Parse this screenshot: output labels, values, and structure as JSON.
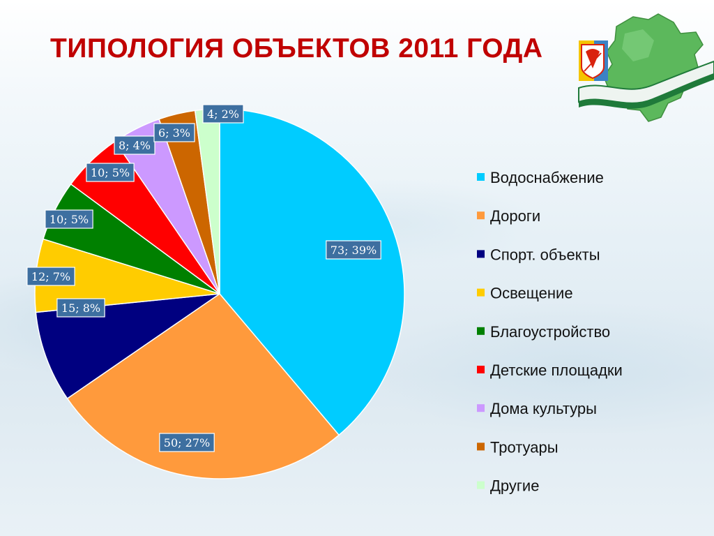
{
  "slide": {
    "title": "ТИПОЛОГИЯ ОБЪЕКТОВ 2011 ГОДА"
  },
  "logo": {
    "icon": "region-map-emblem-icon",
    "colors": {
      "map": "#5cb85c",
      "ribbon": "#1f7a3a",
      "flag_blue": "#3b82c4",
      "flag_yellow": "#f5c400",
      "flag_red": "#d9230f"
    }
  },
  "chart_data": {
    "type": "pie",
    "title": "",
    "legend_position": "right",
    "label_format": "value; percent",
    "slices": [
      {
        "name": "Водоснабжение",
        "value": 73,
        "percent": 39,
        "label": "73; 39%",
        "color": "#00ccff"
      },
      {
        "name": "Дороги",
        "value": 50,
        "percent": 27,
        "label": "50; 27%",
        "color": "#ff9a3c"
      },
      {
        "name": "Спорт. объекты",
        "value": 15,
        "percent": 8,
        "label": "15; 8%",
        "color": "#000080"
      },
      {
        "name": "Освещение",
        "value": 12,
        "percent": 7,
        "label": "12; 7%",
        "color": "#ffcc00"
      },
      {
        "name": "Благоустройство",
        "value": 10,
        "percent": 5,
        "label": "10; 5%",
        "color": "#008000"
      },
      {
        "name": "Детские площадки",
        "value": 10,
        "percent": 5,
        "label": "10; 5%",
        "color": "#ff0000"
      },
      {
        "name": "Дома культуры",
        "value": 8,
        "percent": 4,
        "label": "8; 4%",
        "color": "#cc99ff"
      },
      {
        "name": "Тротуары",
        "value": 6,
        "percent": 3,
        "label": "6; 3%",
        "color": "#cc6600"
      },
      {
        "name": "Другие",
        "value": 4,
        "percent": 2,
        "label": "4; 2%",
        "color": "#ccffcc"
      }
    ]
  }
}
